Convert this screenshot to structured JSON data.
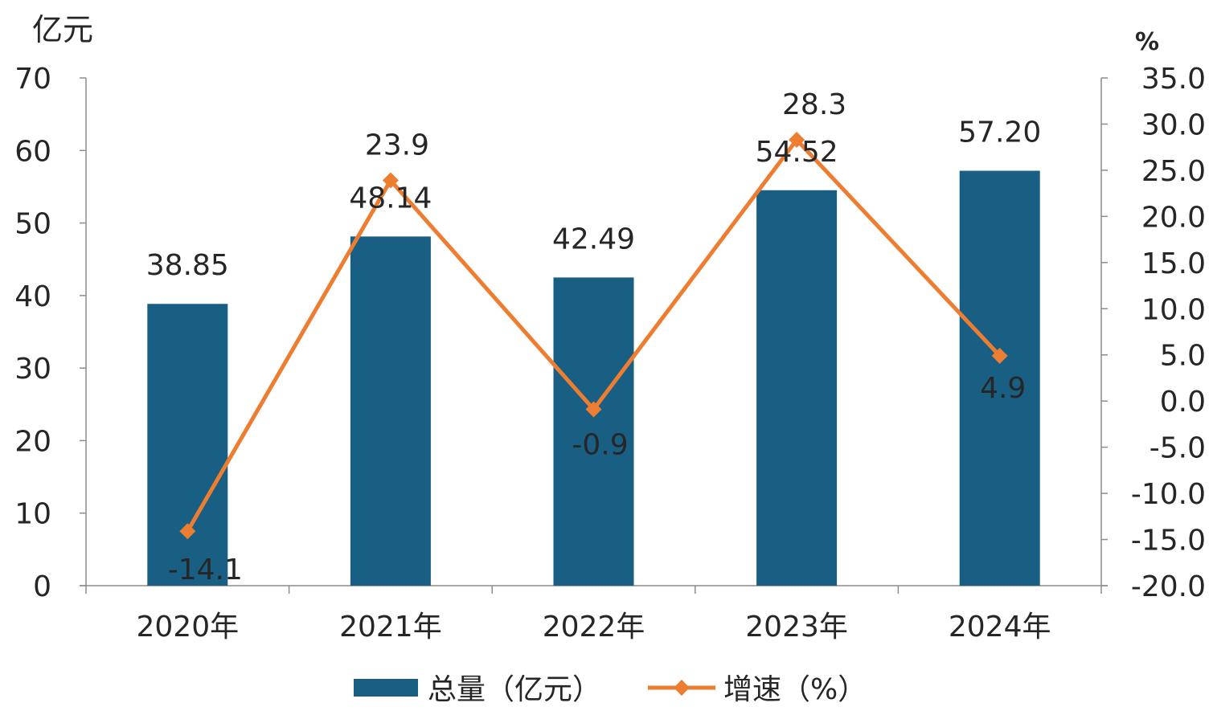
{
  "chart_data": {
    "type": "bar",
    "categories": [
      "2020年",
      "2021年",
      "2022年",
      "2023年",
      "2024年"
    ],
    "series": [
      {
        "name": "总量（亿元）",
        "type": "bar",
        "axis": "left",
        "values": [
          38.85,
          48.14,
          42.49,
          54.52,
          57.2
        ],
        "labels": [
          "38.85",
          "48.14",
          "42.49",
          "54.52",
          "57.20"
        ],
        "color": "#195e83"
      },
      {
        "name": "增速（%）",
        "type": "line",
        "axis": "right",
        "values": [
          -14.1,
          23.9,
          -0.9,
          28.3,
          4.9
        ],
        "labels": [
          "-14.1",
          "23.9",
          "-0.9",
          "28.3",
          "4.9"
        ],
        "color": "#ed7d31"
      }
    ],
    "y_left": {
      "unit": "亿元",
      "min": 0,
      "max": 70,
      "ticks": [
        "0",
        "10",
        "20",
        "30",
        "40",
        "50",
        "60",
        "70"
      ]
    },
    "y_right": {
      "unit": "%",
      "min": -20,
      "max": 35,
      "ticks": [
        "-20.0",
        "-15.0",
        "-10.0",
        "-5.0",
        "0.0",
        "5.0",
        "10.0",
        "15.0",
        "20.0",
        "25.0",
        "30.0",
        "35.0"
      ]
    },
    "legend": "bottom",
    "grid": false
  }
}
